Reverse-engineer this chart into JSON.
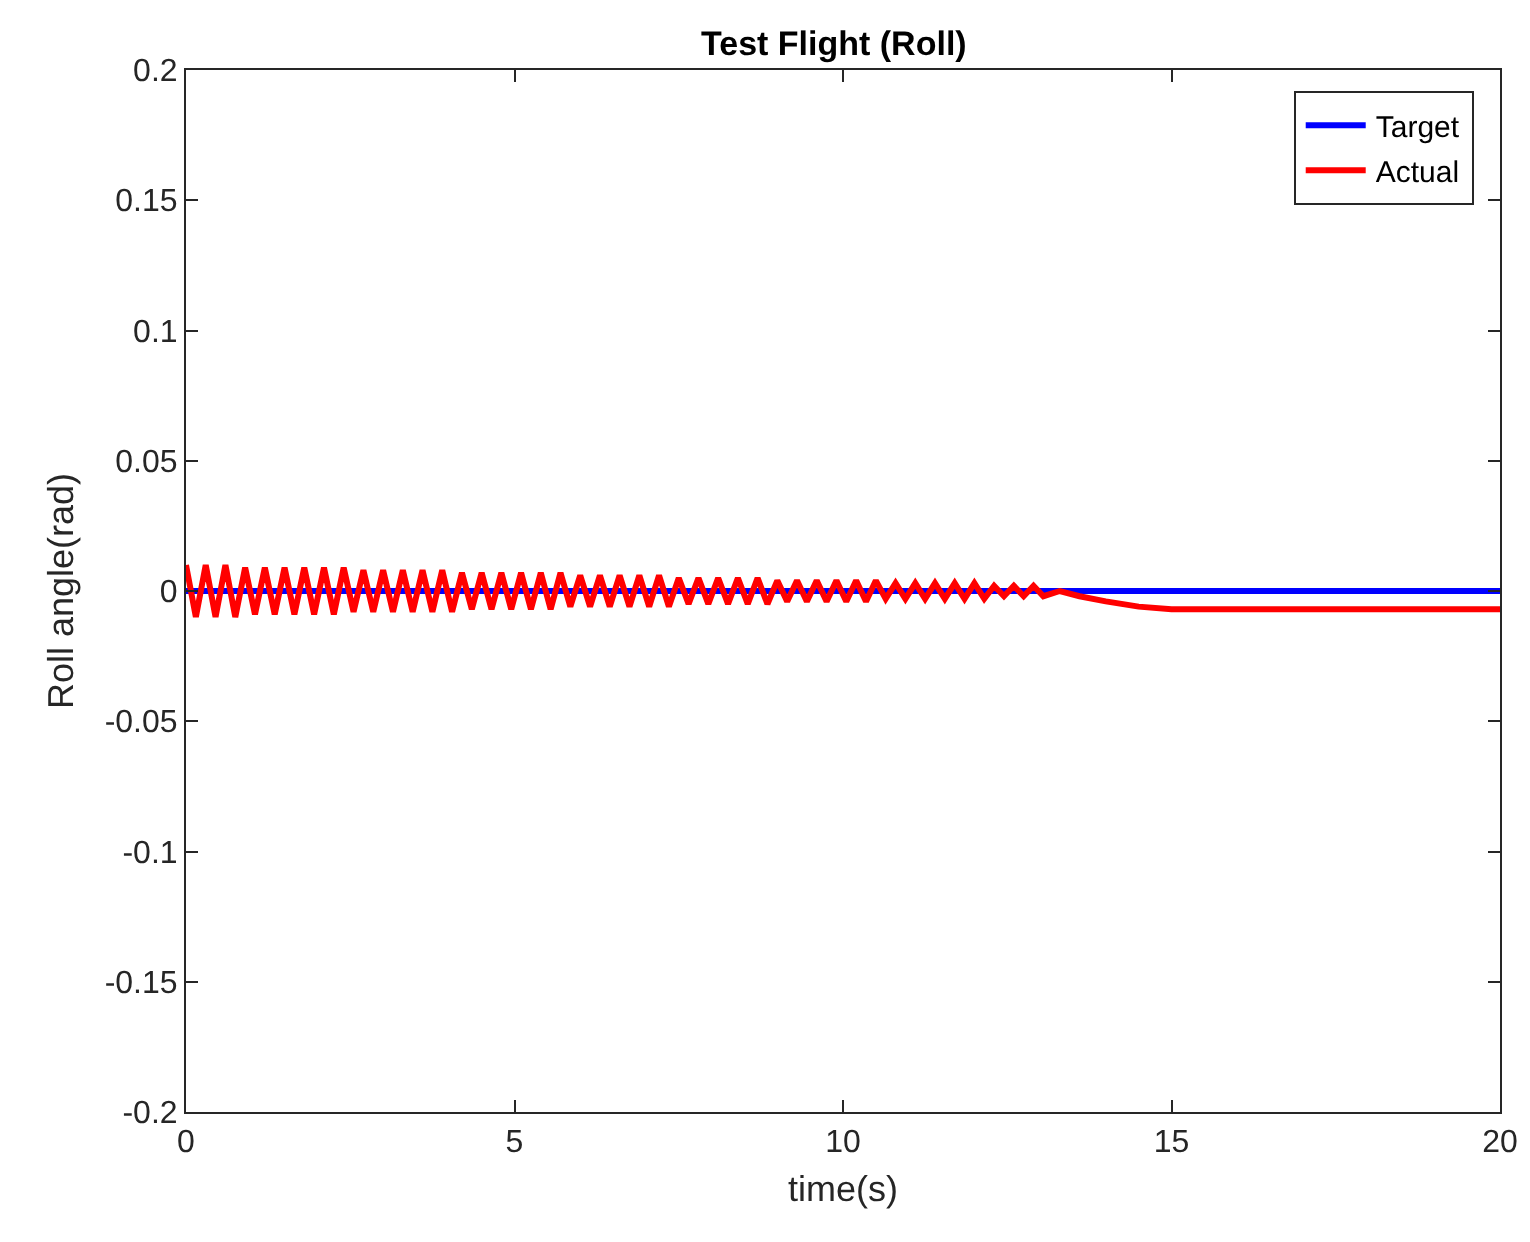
{
  "chart_data": {
    "type": "line",
    "title": "Test Flight (Roll)",
    "xlabel": "time(s)",
    "ylabel": "Roll angle(rad)",
    "xlim": [
      0,
      20
    ],
    "xticks": [
      0,
      5,
      10,
      15,
      20
    ],
    "ylim": [
      -0.2,
      0.2
    ],
    "yticks": [
      -0.2,
      -0.15,
      -0.1,
      -0.05,
      0,
      0.05,
      0.1,
      0.15,
      0.2
    ],
    "grid": false,
    "legend": "top right",
    "line_style": "solid",
    "series": [
      {
        "name": "Target",
        "color": "#0000ff",
        "x": [
          0,
          20
        ],
        "values": [
          0,
          0
        ]
      },
      {
        "name": "Actual",
        "color": "#ff0000",
        "x": [
          0,
          0.15,
          0.3,
          0.45,
          0.6,
          0.75,
          0.9,
          1.05,
          1.2,
          1.35,
          1.5,
          1.65,
          1.8,
          1.95,
          2.1,
          2.25,
          2.4,
          2.55,
          2.7,
          2.85,
          3,
          3.15,
          3.3,
          3.45,
          3.6,
          3.75,
          3.9,
          4.05,
          4.2,
          4.35,
          4.5,
          4.65,
          4.8,
          4.95,
          5.1,
          5.25,
          5.4,
          5.55,
          5.7,
          5.85,
          6,
          6.15,
          6.3,
          6.45,
          6.6,
          6.75,
          6.9,
          7.05,
          7.2,
          7.35,
          7.5,
          7.65,
          7.8,
          7.95,
          8.1,
          8.25,
          8.4,
          8.55,
          8.7,
          8.85,
          9,
          9.15,
          9.3,
          9.45,
          9.6,
          9.75,
          9.9,
          10.05,
          10.2,
          10.35,
          10.5,
          10.65,
          10.8,
          10.95,
          11.1,
          11.25,
          11.4,
          11.55,
          11.7,
          11.85,
          12,
          12.15,
          12.3,
          12.45,
          12.6,
          12.75,
          12.9,
          13.05,
          13.3,
          13.6,
          14,
          14.5,
          15,
          16,
          20
        ],
        "values": [
          0.01,
          -0.01,
          0.01,
          -0.01,
          0.01,
          -0.01,
          0.009,
          -0.009,
          0.009,
          -0.009,
          0.009,
          -0.009,
          0.009,
          -0.009,
          0.009,
          -0.009,
          0.009,
          -0.008,
          0.008,
          -0.008,
          0.008,
          -0.008,
          0.008,
          -0.008,
          0.008,
          -0.008,
          0.008,
          -0.008,
          0.007,
          -0.007,
          0.007,
          -0.007,
          0.007,
          -0.007,
          0.007,
          -0.007,
          0.007,
          -0.007,
          0.007,
          -0.006,
          0.006,
          -0.006,
          0.006,
          -0.006,
          0.006,
          -0.006,
          0.006,
          -0.006,
          0.006,
          -0.006,
          0.005,
          -0.005,
          0.005,
          -0.005,
          0.005,
          -0.005,
          0.005,
          -0.005,
          0.005,
          -0.005,
          0.004,
          -0.004,
          0.004,
          -0.004,
          0.004,
          -0.004,
          0.004,
          -0.004,
          0.004,
          -0.004,
          0.004,
          -0.003,
          0.003,
          -0.003,
          0.003,
          -0.003,
          0.003,
          -0.003,
          0.003,
          -0.003,
          0.003,
          -0.003,
          0.002,
          -0.002,
          0.002,
          -0.002,
          0.002,
          -0.002,
          0,
          -0.002,
          -0.004,
          -0.006,
          -0.007,
          -0.007,
          -0.007
        ]
      }
    ]
  }
}
